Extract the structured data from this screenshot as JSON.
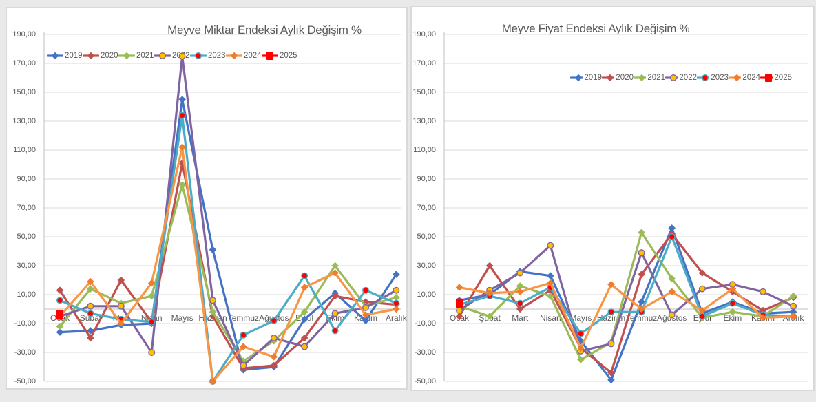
{
  "page": {
    "background": "#e9e9e9"
  },
  "chart_data": [
    {
      "type": "line",
      "title": "Meyve Miktar Endeksi Aylık Değişim %",
      "legend_position": "top-left",
      "grid": true,
      "categories": [
        "Ocak",
        "Şubat",
        "Mart",
        "Nisan",
        "Mayıs",
        "Haziran",
        "Temmuz",
        "Ağustos",
        "Eylül",
        "Ekim",
        "Kasım",
        "Aralık"
      ],
      "y_axis": {
        "min": -50,
        "max": 190,
        "step": 20,
        "tick_labels": [
          "190,00",
          "170,00",
          "150,00",
          "130,00",
          "110,00",
          "90,00",
          "70,00",
          "50,00",
          "30,00",
          "10,00",
          "-10,00",
          "-30,00",
          "-50,00"
        ]
      },
      "series": [
        {
          "name": "2019",
          "color": "#4472C4",
          "marker": "diamond",
          "marker_color": "#4472C4",
          "values": [
            -16,
            -15,
            -11,
            -10,
            145,
            41,
            -42,
            -40,
            -7,
            11,
            -8,
            24
          ]
        },
        {
          "name": "2020",
          "color": "#C0504D",
          "marker": "diamond",
          "marker_color": "#C0504D",
          "values": [
            13,
            -20,
            20,
            -9,
            101,
            -5,
            -41,
            -39,
            -20,
            9,
            5,
            3
          ]
        },
        {
          "name": "2021",
          "color": "#9BBB59",
          "marker": "diamond",
          "marker_color": "#9BBB59",
          "values": [
            -12,
            14,
            4,
            9,
            86,
            -2,
            -36,
            -22,
            -2,
            30,
            2,
            8
          ]
        },
        {
          "name": "2022",
          "color": "#8064A2",
          "marker": "circle",
          "marker_color": "#FFC000",
          "values": [
            -5,
            2,
            2,
            -30,
            175,
            6,
            -39,
            -20,
            -26,
            -3,
            1,
            13
          ]
        },
        {
          "name": "2023",
          "color": "#4BACC6",
          "marker": "circle",
          "marker_color": "#FF0000",
          "values": [
            6,
            -3,
            -7,
            -9,
            134,
            -50,
            -18,
            -8,
            23,
            -15,
            13,
            4
          ]
        },
        {
          "name": "2024",
          "color": "#F79646",
          "marker": "diamond",
          "marker_color": "#ED7D31",
          "values": [
            -5,
            19,
            -10,
            18,
            112,
            -50,
            -26,
            -33,
            15,
            25,
            -4,
            0
          ]
        },
        {
          "name": "2025",
          "color": "#FF0000",
          "marker": "square",
          "marker_color": "#FF0000",
          "values": [
            -4,
            null,
            null,
            null,
            null,
            null,
            null,
            null,
            null,
            null,
            null,
            null
          ]
        }
      ]
    },
    {
      "type": "line",
      "title": "Meyve Fiyat Endeksi Aylık Değişim %",
      "legend_position": "top-center",
      "grid": true,
      "categories": [
        "Ocak",
        "Şubat",
        "Mart",
        "Nisan",
        "Mayıs",
        "Haziran",
        "Temmuz",
        "Ağustos",
        "Eylül",
        "Ekim",
        "Kasım",
        "Aralık"
      ],
      "y_axis": {
        "min": -50,
        "max": 190,
        "step": 20,
        "tick_labels": [
          "190,00",
          "170,00",
          "150,00",
          "130,00",
          "110,00",
          "90,00",
          "70,00",
          "50,00",
          "30,00",
          "10,00",
          "-10,00",
          "-30,00",
          "-50,00"
        ]
      },
      "series": [
        {
          "name": "2019",
          "color": "#4472C4",
          "marker": "diamond",
          "marker_color": "#4472C4",
          "values": [
            6,
            10,
            26,
            23,
            -22,
            -49,
            5,
            56,
            -3,
            5,
            -3,
            -2
          ]
        },
        {
          "name": "2020",
          "color": "#C0504D",
          "marker": "diamond",
          "marker_color": "#C0504D",
          "values": [
            -5,
            30,
            0,
            13,
            -27,
            -44,
            24,
            52,
            25,
            12,
            -1,
            8
          ]
        },
        {
          "name": "2021",
          "color": "#9BBB59",
          "marker": "diamond",
          "marker_color": "#9BBB59",
          "values": [
            2,
            -5,
            16,
            9,
            -35,
            -23,
            53,
            21,
            -6,
            -2,
            -5,
            9
          ]
        },
        {
          "name": "2022",
          "color": "#8064A2",
          "marker": "circle",
          "marker_color": "#FFC000",
          "values": [
            -1,
            13,
            25,
            44,
            -29,
            -24,
            39,
            -4,
            14,
            17,
            12,
            2
          ]
        },
        {
          "name": "2023",
          "color": "#4BACC6",
          "marker": "circle",
          "marker_color": "#FF0000",
          "values": [
            3,
            9,
            4,
            15,
            -17,
            -2,
            -2,
            50,
            -5,
            4,
            -4,
            -5
          ]
        },
        {
          "name": "2024",
          "color": "#F79646",
          "marker": "diamond",
          "marker_color": "#ED7D31",
          "values": [
            15,
            11,
            12,
            18,
            -27,
            17,
            0,
            12,
            -1,
            14,
            -6,
            -5
          ]
        },
        {
          "name": "2025",
          "color": "#FF0000",
          "marker": "square",
          "marker_color": "#FF0000",
          "values": [
            4,
            null,
            null,
            null,
            null,
            null,
            null,
            null,
            null,
            null,
            null,
            null
          ]
        }
      ]
    }
  ]
}
